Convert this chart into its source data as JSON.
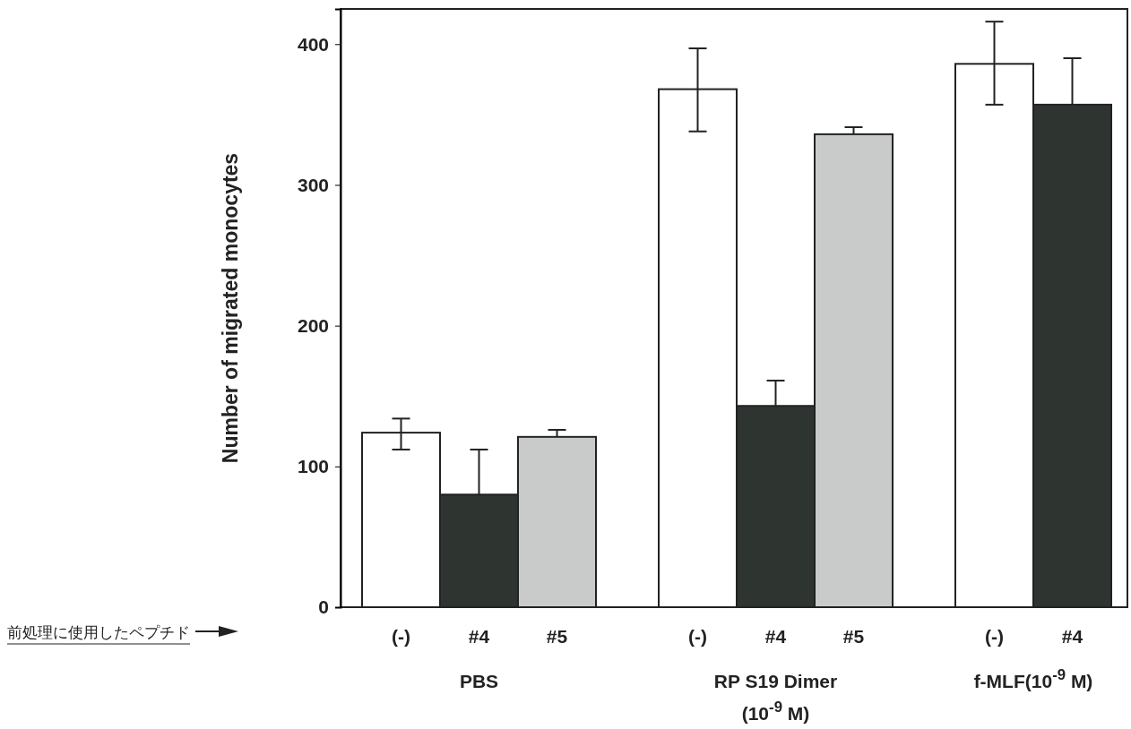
{
  "chart_data": {
    "type": "bar",
    "ylabel": "Number of migrated monocytes",
    "categories": [
      "(-)",
      "#4",
      "#5",
      "(-)",
      "#4",
      "#5",
      "(-)",
      "#4"
    ],
    "values": [
      124,
      80,
      121,
      368,
      143,
      336,
      386,
      357
    ],
    "colors": [
      "#ffffff",
      "#2e3530",
      "#c8cbca",
      "#ffffff",
      "#2e3530",
      "#c8cbca",
      "#ffffff",
      "#2e3530"
    ],
    "errors": [
      [
        112,
        134
      ],
      [
        80,
        112
      ],
      [
        121,
        126
      ],
      [
        338,
        397
      ],
      [
        143,
        161
      ],
      [
        336,
        341
      ],
      [
        357,
        416
      ],
      [
        357,
        390
      ]
    ],
    "ylim": [
      0,
      425
    ],
    "yticks": [
      0,
      100,
      200,
      300,
      400
    ],
    "annotations": [
      "PBS",
      "RP S19 Dimer\n(10$^{-9}$ M)",
      "f-MLF(10$^{-9}$ M)",
      "前処理に使用したペプチド"
    ]
  }
}
